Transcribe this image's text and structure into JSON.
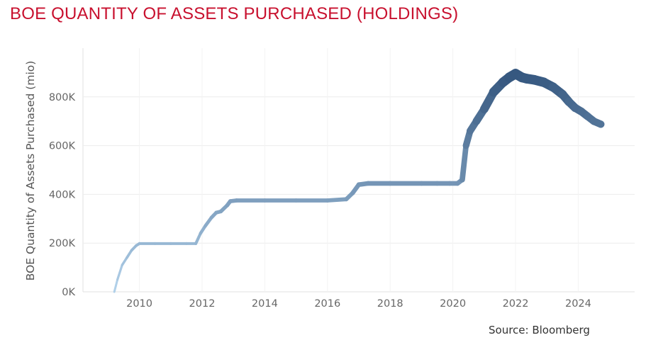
{
  "header": {
    "title": "BOE QUANTITY OF ASSETS PURCHASED (HOLDINGS)"
  },
  "footer": {
    "source": "Source: Bloomberg"
  },
  "chart_data": {
    "type": "line",
    "title": "BOE QUANTITY OF ASSETS PURCHASED (HOLDINGS)",
    "xlabel": "",
    "ylabel": "BOE Quantity of Assets Purchased (mio)",
    "xlim": [
      2008.2,
      2025.8
    ],
    "ylim": [
      0,
      1000000
    ],
    "grid": true,
    "x_ticks": [
      2010,
      2012,
      2014,
      2016,
      2018,
      2020,
      2022,
      2024
    ],
    "y_ticks": [
      {
        "value": 0,
        "label": "0K"
      },
      {
        "value": 200000,
        "label": "200K"
      },
      {
        "value": 400000,
        "label": "400K"
      },
      {
        "value": 600000,
        "label": "600K"
      },
      {
        "value": 800000,
        "label": "800K"
      }
    ],
    "color_scale": [
      "#b4d3ec",
      "#35577f"
    ],
    "series": [
      {
        "x": [
          2009.2,
          2009.3,
          2009.45,
          2009.6,
          2009.75,
          2009.9,
          2010.0,
          2010.5,
          2011.0,
          2011.5,
          2011.8,
          2011.95,
          2012.1,
          2012.3,
          2012.45,
          2012.6,
          2012.8,
          2012.9,
          2013.1,
          2014.0,
          2015.0,
          2016.0,
          2016.6,
          2016.8,
          2017.0,
          2017.3,
          2018.0,
          2019.0,
          2019.5,
          2019.9,
          2020.15,
          2020.3,
          2020.42,
          2020.55,
          2020.75,
          2021.0,
          2021.3,
          2021.6,
          2021.8,
          2022.0,
          2022.2,
          2022.35,
          2022.6,
          2022.9,
          2023.2,
          2023.5,
          2023.7,
          2023.9,
          2024.1,
          2024.3,
          2024.5,
          2024.72
        ],
        "y": [
          0,
          50000,
          110000,
          140000,
          170000,
          190000,
          198000,
          198000,
          198000,
          198000,
          198000,
          240000,
          270000,
          305000,
          325000,
          330000,
          355000,
          372000,
          375000,
          375000,
          375000,
          375000,
          380000,
          405000,
          440000,
          445000,
          445000,
          445000,
          445000,
          445000,
          445000,
          460000,
          600000,
          660000,
          700000,
          750000,
          820000,
          860000,
          880000,
          895000,
          880000,
          875000,
          870000,
          860000,
          840000,
          810000,
          780000,
          755000,
          740000,
          720000,
          700000,
          688000
        ]
      }
    ]
  }
}
